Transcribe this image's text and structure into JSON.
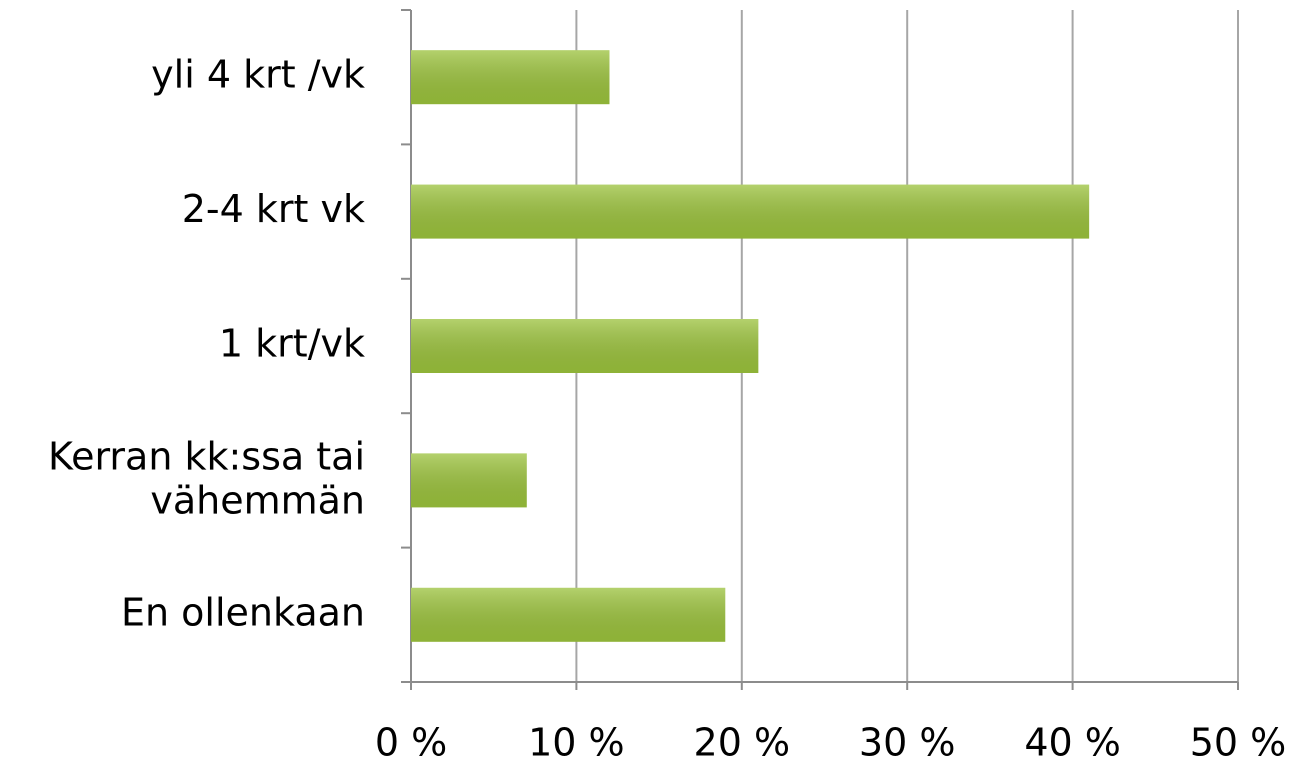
{
  "chart_data": {
    "type": "bar",
    "orientation": "horizontal",
    "categories": [
      "yli 4 krt /vk",
      "2-4 krt vk",
      "1 krt/vk",
      "Kerran kk:ssa tai vähemmän",
      "En ollenkaan"
    ],
    "values": [
      12,
      41,
      21,
      7,
      19
    ],
    "color": "#9bc23c",
    "xlim": [
      0,
      50
    ],
    "xticks": [
      {
        "value": 0,
        "label": "0 %"
      },
      {
        "value": 10,
        "label": "10 %"
      },
      {
        "value": 20,
        "label": "20 %"
      },
      {
        "value": 30,
        "label": "30 %"
      },
      {
        "value": 40,
        "label": "40 %"
      },
      {
        "value": 50,
        "label": "50 %"
      }
    ],
    "grid": true
  }
}
